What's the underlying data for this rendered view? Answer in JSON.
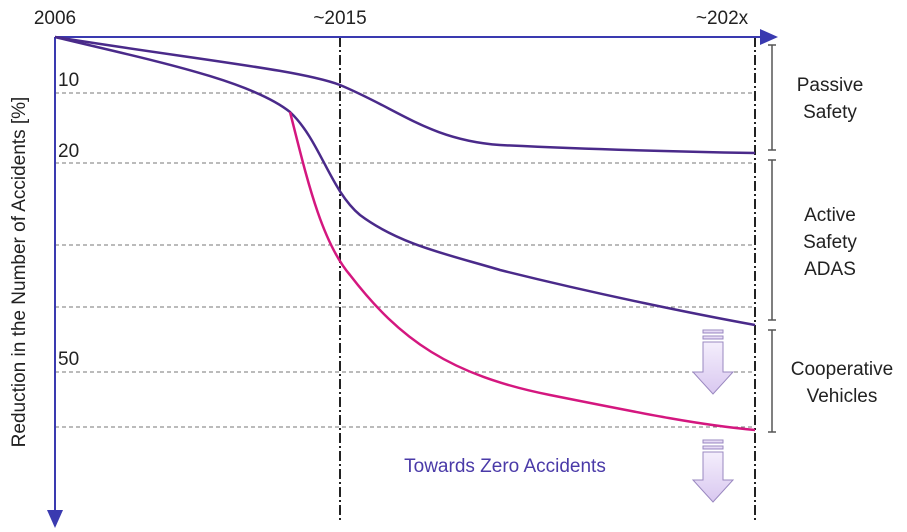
{
  "axis": {
    "x_labels": [
      "2006",
      "~2015",
      "~202x"
    ],
    "y_title": "Reduction in the Number of Accidents [%]",
    "y_labels": [
      "10",
      "20",
      "50"
    ]
  },
  "segments": [
    {
      "lines": [
        "Passive",
        "Safety"
      ]
    },
    {
      "lines": [
        "Active",
        "Safety",
        "ADAS"
      ]
    },
    {
      "lines": [
        "Cooperative",
        "Vehicles"
      ]
    }
  ],
  "annotation": "Towards Zero Accidents"
}
